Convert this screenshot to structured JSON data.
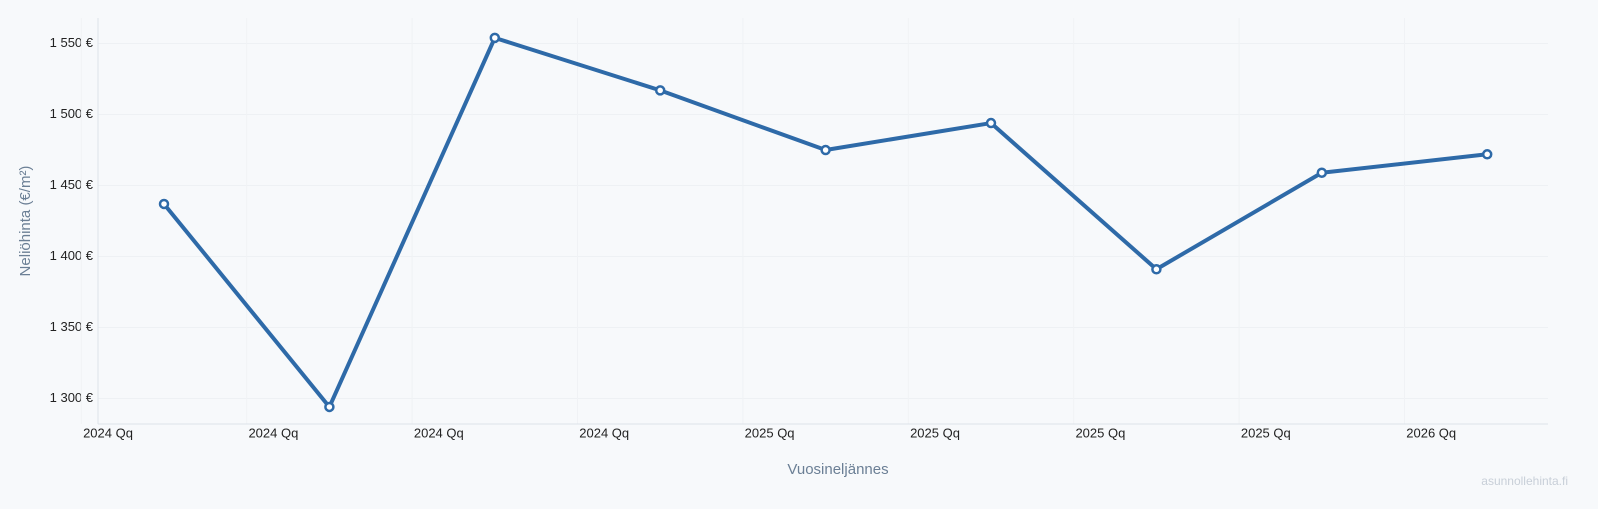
{
  "chart_data": {
    "type": "line",
    "y_label": "Neliöhinta (€/m²)",
    "x_label": "Vuosineljännes",
    "watermark": "asunnollehinta.fi",
    "categories": [
      "2024 Qq",
      "2024 Qq",
      "2024 Qq",
      "2024 Qq",
      "2025 Qq",
      "2025 Qq",
      "2025 Qq",
      "2025 Qq",
      "2026 Qq"
    ],
    "series": [
      {
        "color": "#2e6aa8",
        "values": [
          1437,
          1294,
          1554,
          1517,
          1475,
          1494,
          1391,
          1459,
          1472
        ]
      }
    ],
    "ylim": [
      1282,
      1568
    ],
    "yticks": [
      {
        "value": 1300,
        "label": "1 300 €"
      },
      {
        "value": 1350,
        "label": "1 350 €"
      },
      {
        "value": 1400,
        "label": "1 400 €"
      },
      {
        "value": 1450,
        "label": "1 450 €"
      },
      {
        "value": 1500,
        "label": "1 500 €"
      },
      {
        "value": 1550,
        "label": "1 550 €"
      }
    ],
    "grid": true
  }
}
